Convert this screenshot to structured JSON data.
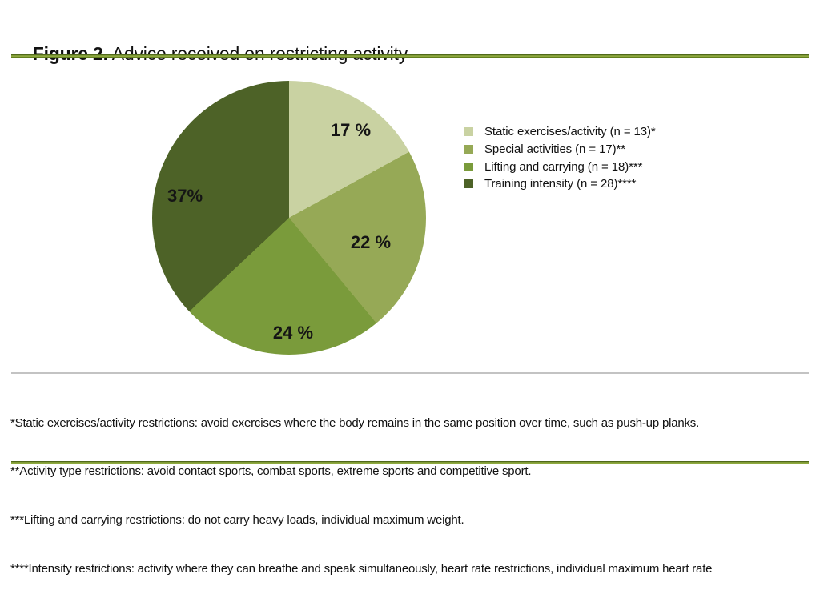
{
  "figure": {
    "label": "Figure 2.",
    "title": " Advice received on restricting activity"
  },
  "chart_data": {
    "type": "pie",
    "title": "Advice received on restricting activity",
    "start_angle_deg": 0,
    "direction": "clockwise",
    "legend_position": "right",
    "slices": [
      {
        "label": "Static exercises/activity (n = 13)*",
        "value_pct": 17,
        "n": 13,
        "data_label": "17 %",
        "color": "#c9d2a2"
      },
      {
        "label": "Special activities (n = 17)**",
        "value_pct": 22,
        "n": 17,
        "data_label": "22 %",
        "color": "#96a956"
      },
      {
        "label": "Lifting and carrying (n = 18)***",
        "value_pct": 24,
        "n": 18,
        "data_label": "24 %",
        "color": "#7a9b3b"
      },
      {
        "label": "Training intensity (n = 28)****",
        "value_pct": 37,
        "n": 28,
        "data_label": "37%",
        "color": "#4d6227"
      }
    ]
  },
  "footnotes": [
    "*Static exercises/activity restrictions: avoid exercises where the body remains in the same position over time, such as push-up planks.",
    "**Activity type restrictions: avoid contact sports, combat sports, extreme sports and competitive sport.",
    "***Lifting and carrying restrictions: do not carry heavy loads, individual maximum weight.",
    "****Intensity restrictions: activity where they can breathe and speak simultaneously, heart rate restrictions, individual maximum heart rate"
  ],
  "colors": {
    "rule_green": "#7a992c",
    "rule_gray": "#c3c3c3",
    "text": "#111111"
  }
}
